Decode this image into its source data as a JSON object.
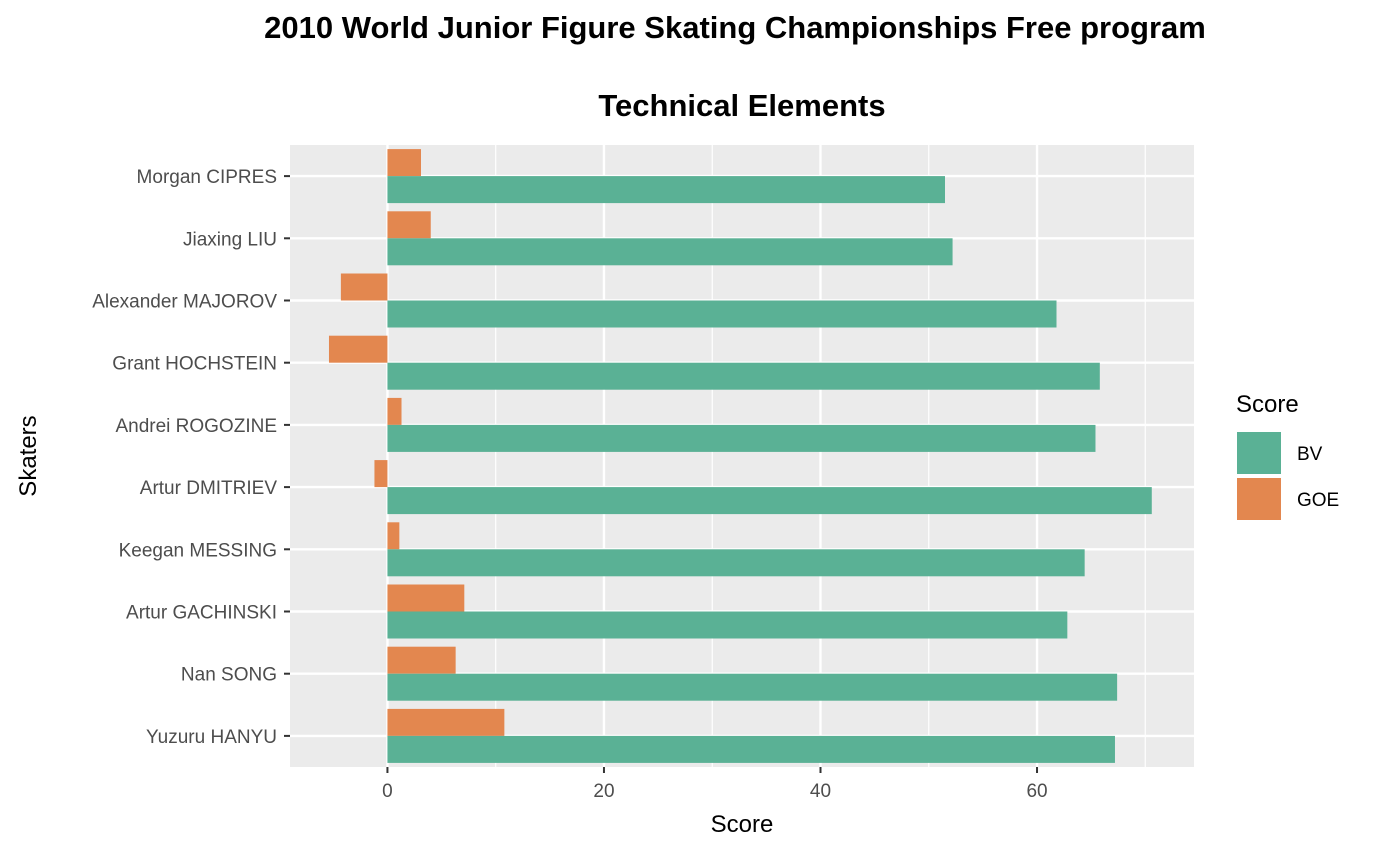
{
  "chart_data": {
    "type": "bar",
    "orientation": "horizontal",
    "title": "2010 World Junior Figure Skating Championships Free program",
    "subtitle": "Technical Elements",
    "xlabel": "Score",
    "ylabel": "Skaters",
    "xlim": [
      -9,
      74.5
    ],
    "xticks": [
      0,
      20,
      40,
      60
    ],
    "grid": true,
    "legend": {
      "title": "Score",
      "position": "right"
    },
    "categories": [
      "Morgan CIPRES",
      "Jiaxing LIU",
      "Alexander MAJOROV",
      "Grant HOCHSTEIN",
      "Andrei ROGOZINE",
      "Artur DMITRIEV",
      "Keegan MESSING",
      "Artur GACHINSKI",
      "Nan SONG",
      "Yuzuru HANYU"
    ],
    "series": [
      {
        "name": "BV",
        "color": "#5ab195",
        "values": [
          51.5,
          52.2,
          61.8,
          65.8,
          65.4,
          70.6,
          64.4,
          62.8,
          67.4,
          67.2
        ]
      },
      {
        "name": "GOE",
        "color": "#e3874f",
        "values": [
          3.1,
          4.0,
          -4.3,
          -5.4,
          1.3,
          -1.2,
          1.1,
          7.1,
          6.3,
          10.8
        ]
      }
    ]
  }
}
